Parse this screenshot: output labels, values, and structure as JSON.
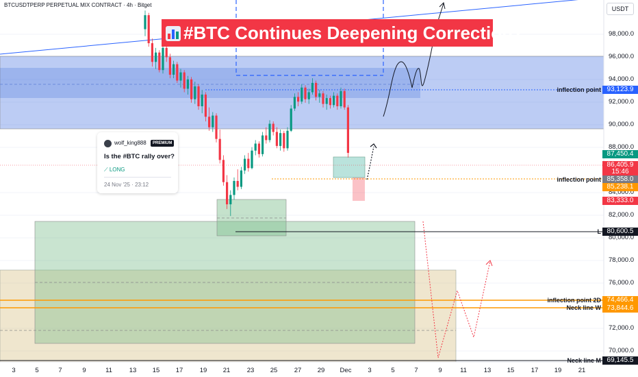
{
  "header": {
    "symbol": "BTCUSDTPERP PERPETUAL MIX CONTRACT · 4h · Bitget",
    "currency": "USDT"
  },
  "banner": {
    "title": "#BTC Continues Deepening Correction?",
    "emoji_icon": "bar-chart-icon"
  },
  "idea_card": {
    "username": "wolf_king888",
    "badge": "PREMIUM",
    "title": "Is the #BTC rally over?",
    "direction": "LONG",
    "direction_icon": "trend-up-icon",
    "timestamp": "24 Nov '25 · 23:12"
  },
  "price_axis": [
    "98,000.0",
    "96,000.0",
    "94,000.0",
    "92,000.0",
    "90,000.0",
    "88,000.0",
    "84,000.0",
    "82,000.0",
    "80,000.0",
    "78,000.0",
    "76,000.0",
    "72,000.0",
    "70,000.0"
  ],
  "date_axis": [
    "3",
    "5",
    "7",
    "9",
    "11",
    "13",
    "15",
    "17",
    "19",
    "21",
    "23",
    "25",
    "27",
    "29",
    "Dec",
    "3",
    "5",
    "7",
    "9",
    "11",
    "13",
    "15",
    "17",
    "19",
    "21"
  ],
  "price_tags": [
    {
      "text": "93,123.9",
      "color": "#2962ff"
    },
    {
      "text": "87,450.4",
      "color": "#089981"
    },
    {
      "text": "86,405.9",
      "color": "#f23645"
    },
    {
      "text": "15:46",
      "color": "#f23645"
    },
    {
      "text": "85,358.0",
      "color": "#787b86"
    },
    {
      "text": "85,238.1",
      "color": "#ff9800"
    },
    {
      "text": "83,333.0",
      "color": "#f23645"
    },
    {
      "text": "80,600.5",
      "color": "#131722"
    },
    {
      "text": "74,466.4",
      "color": "#ff9800"
    },
    {
      "text": "73,844.6",
      "color": "#ff9800"
    },
    {
      "text": "69,145.5",
      "color": "#131722"
    }
  ],
  "line_notes": {
    "inflection_upper": "inflection point",
    "inflection_mid": "inflection point",
    "low_marker": "L",
    "inflection_2d": "inflection point 2D",
    "neck_w": "Neck line W",
    "neck_m": "Neck line M"
  },
  "chart_data": {
    "type": "candlestick",
    "ylim": [
      68500,
      99500
    ],
    "levels": [
      {
        "label": "inflection point",
        "price": 93123.9
      },
      {
        "label": "inflection point",
        "price": 85238.1
      },
      {
        "label": "L",
        "price": 80600.5
      },
      {
        "label": "inflection point 2D",
        "price": 74466.4
      },
      {
        "label": "Neck line W",
        "price": 73844.6
      },
      {
        "label": "Neck line M",
        "price": 69145.5
      }
    ],
    "candles": [
      [
        97000,
        98600,
        96400,
        98200
      ],
      [
        98200,
        98400,
        95500,
        95800
      ],
      [
        95800,
        96200,
        93800,
        94200
      ],
      [
        94200,
        95400,
        93600,
        95000
      ],
      [
        95000,
        95200,
        93300,
        93500
      ],
      [
        93500,
        95800,
        93200,
        95400
      ],
      [
        95400,
        96000,
        94200,
        94600
      ],
      [
        94600,
        94900,
        92800,
        93100
      ],
      [
        93100,
        94300,
        92800,
        94000
      ],
      [
        94000,
        94200,
        92400,
        92600
      ],
      [
        92600,
        93600,
        92000,
        93300
      ],
      [
        93300,
        93500,
        91600,
        91900
      ],
      [
        91900,
        93000,
        91400,
        92700
      ],
      [
        92700,
        92900,
        90700,
        91000
      ],
      [
        91000,
        92500,
        90600,
        92100
      ],
      [
        92100,
        92300,
        90100,
        90400
      ],
      [
        90400,
        91800,
        89800,
        91400
      ],
      [
        91400,
        91600,
        89100,
        89500
      ],
      [
        89500,
        90300,
        88300,
        88600
      ],
      [
        88600,
        89900,
        88200,
        89600
      ],
      [
        89600,
        89800,
        87300,
        87600
      ],
      [
        87600,
        88400,
        85500,
        85800
      ],
      [
        85800,
        86200,
        83600,
        83900
      ],
      [
        83900,
        84500,
        81600,
        82000
      ],
      [
        82000,
        83200,
        81000,
        82800
      ],
      [
        82800,
        84300,
        82400,
        84000
      ],
      [
        84000,
        85000,
        83200,
        83500
      ],
      [
        83500,
        85200,
        83300,
        84900
      ],
      [
        84900,
        86200,
        84600,
        85900
      ],
      [
        85900,
        86400,
        84800,
        85100
      ],
      [
        85100,
        86900,
        85000,
        86600
      ],
      [
        86600,
        87500,
        86200,
        87200
      ],
      [
        87200,
        87400,
        86000,
        86300
      ],
      [
        86300,
        88200,
        86100,
        87900
      ],
      [
        87900,
        88600,
        87200,
        87500
      ],
      [
        87500,
        89200,
        87300,
        88900
      ],
      [
        88900,
        89100,
        87900,
        88200
      ],
      [
        88200,
        88600,
        86800,
        87000
      ],
      [
        87000,
        88400,
        86600,
        88100
      ],
      [
        88100,
        88300,
        86500,
        86800
      ],
      [
        86800,
        88600,
        86600,
        88300
      ],
      [
        88300,
        90500,
        88200,
        90200
      ],
      [
        90200,
        91500,
        90000,
        91200
      ],
      [
        91200,
        91600,
        90400,
        90800
      ],
      [
        90800,
        92300,
        90600,
        92000
      ],
      [
        92000,
        92200,
        90700,
        91000
      ],
      [
        91000,
        91900,
        90600,
        91600
      ],
      [
        91600,
        92800,
        91400,
        92400
      ],
      [
        92400,
        92600,
        90900,
        91200
      ],
      [
        91200,
        91800,
        90700,
        91500
      ],
      [
        91500,
        91700,
        90300,
        90600
      ],
      [
        90600,
        91400,
        90100,
        91100
      ],
      [
        91100,
        91300,
        90200,
        90500
      ],
      [
        90500,
        91600,
        90300,
        91300
      ],
      [
        91300,
        91500,
        90100,
        90400
      ],
      [
        90400,
        92000,
        90200,
        91700
      ],
      [
        91700,
        91900,
        90100,
        90300
      ],
      [
        90300,
        90500,
        86000,
        86406
      ]
    ]
  }
}
